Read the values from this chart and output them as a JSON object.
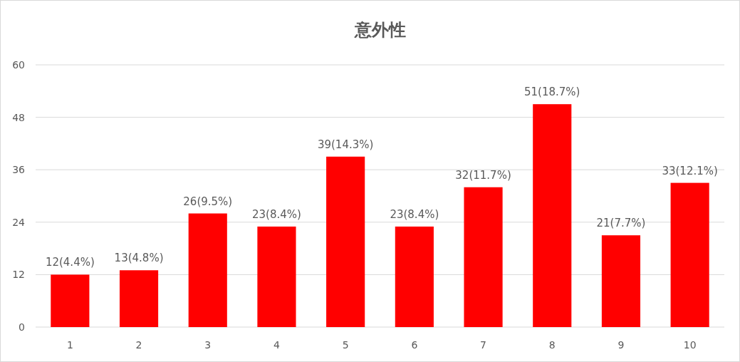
{
  "chart_data": {
    "type": "bar",
    "title": "意外性",
    "categories": [
      "1",
      "2",
      "3",
      "4",
      "5",
      "6",
      "7",
      "8",
      "9",
      "10"
    ],
    "values": [
      12,
      13,
      26,
      23,
      39,
      23,
      32,
      51,
      21,
      33
    ],
    "value_labels": [
      "12(4.4%)",
      "13(4.8%)",
      "26(9.5%)",
      "23(8.4%)",
      "39(14.3%)",
      "23(8.4%)",
      "32(11.7%)",
      "51(18.7%)",
      "21(7.7%)",
      "33(12.1%)"
    ],
    "color": "#ff0000",
    "ylim": [
      0,
      60
    ],
    "yticks": [
      0,
      12,
      24,
      36,
      48,
      60
    ],
    "grid": "y"
  }
}
